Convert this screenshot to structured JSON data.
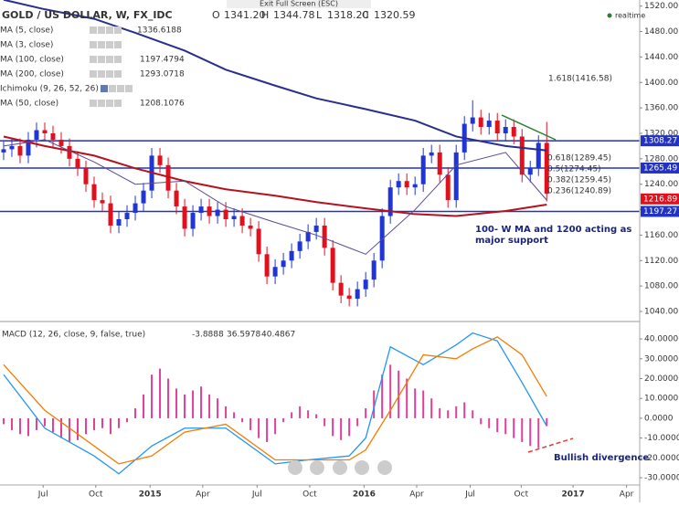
{
  "ui": {
    "fullscreen": "Exit Full Screen (ESC)",
    "realtime": "realtime"
  },
  "header": {
    "symbol": "GOLD / US DOLLAR, W, FX_IDC",
    "ohlc": [
      {
        "label": "O",
        "value": "1341.20"
      },
      {
        "label": "H",
        "value": "1344.78"
      },
      {
        "label": "L",
        "value": "1318.20"
      },
      {
        "label": "C",
        "value": "1320.59"
      }
    ]
  },
  "chart_data": [
    {
      "type": "candlestick",
      "up_color": "#1f35d6",
      "down_color": "#e0101c",
      "categories": [
        null,
        null,
        null,
        null,
        null,
        null,
        null,
        null,
        null,
        null,
        null,
        null,
        null,
        null,
        null,
        null,
        null,
        null,
        null,
        null,
        null,
        null,
        null,
        null,
        null,
        null,
        null,
        null,
        null,
        null,
        null,
        null,
        null,
        null,
        null,
        null,
        null,
        null,
        null,
        null,
        null,
        null,
        null,
        null,
        null,
        null,
        null,
        null,
        null,
        null,
        null,
        null,
        null,
        null,
        null,
        null,
        null,
        null,
        null,
        null,
        null,
        null,
        null,
        null,
        null,
        null,
        null
      ],
      "open": [
        1290,
        1295,
        1300,
        1285,
        1310,
        1325,
        1320,
        1310,
        1300,
        1280,
        1265,
        1240,
        1215,
        1210,
        1175,
        1185,
        1195,
        1210,
        1230,
        1285,
        1270,
        1230,
        1205,
        1170,
        1195,
        1205,
        1190,
        1200,
        1185,
        1190,
        1175,
        1170,
        1130,
        1095,
        1110,
        1120,
        1135,
        1150,
        1165,
        1175,
        1140,
        1085,
        1065,
        1060,
        1075,
        1090,
        1120,
        1190,
        1235,
        1245,
        1235,
        1240,
        1285,
        1290,
        1255,
        1215,
        1290,
        1335,
        1345,
        1330,
        1340,
        1320,
        1330,
        1315,
        1255,
        1265,
        1305
      ],
      "high": [
        1307,
        1312,
        1312,
        1322,
        1337,
        1337,
        1332,
        1322,
        1312,
        1292,
        1277,
        1252,
        1227,
        1222,
        1197,
        1207,
        1222,
        1242,
        1297,
        1297,
        1282,
        1242,
        1217,
        1207,
        1217,
        1217,
        1212,
        1212,
        1202,
        1202,
        1187,
        1182,
        1142,
        1122,
        1132,
        1147,
        1162,
        1177,
        1187,
        1187,
        1152,
        1097,
        1077,
        1087,
        1102,
        1132,
        1202,
        1247,
        1257,
        1257,
        1252,
        1297,
        1302,
        1302,
        1267,
        1302,
        1347,
        1372,
        1357,
        1352,
        1352,
        1342,
        1342,
        1327,
        1277,
        1317,
        1338
      ],
      "low": [
        1278,
        1283,
        1273,
        1273,
        1298,
        1308,
        1298,
        1288,
        1268,
        1253,
        1228,
        1203,
        1198,
        1163,
        1163,
        1173,
        1183,
        1198,
        1218,
        1258,
        1218,
        1193,
        1158,
        1158,
        1183,
        1178,
        1178,
        1173,
        1173,
        1163,
        1158,
        1118,
        1083,
        1083,
        1098,
        1108,
        1123,
        1138,
        1153,
        1128,
        1073,
        1053,
        1048,
        1048,
        1063,
        1078,
        1108,
        1178,
        1223,
        1223,
        1223,
        1228,
        1273,
        1243,
        1203,
        1203,
        1278,
        1323,
        1318,
        1318,
        1308,
        1308,
        1303,
        1243,
        1243,
        1253,
        1213
      ],
      "close": [
        1295,
        1300,
        1285,
        1310,
        1325,
        1320,
        1310,
        1300,
        1280,
        1265,
        1240,
        1215,
        1210,
        1175,
        1185,
        1195,
        1210,
        1230,
        1285,
        1270,
        1230,
        1205,
        1170,
        1195,
        1205,
        1190,
        1200,
        1185,
        1190,
        1175,
        1170,
        1130,
        1095,
        1110,
        1120,
        1135,
        1150,
        1165,
        1175,
        1140,
        1085,
        1065,
        1060,
        1075,
        1090,
        1120,
        1190,
        1235,
        1245,
        1235,
        1240,
        1285,
        1290,
        1255,
        1215,
        1290,
        1335,
        1345,
        1330,
        1340,
        1320,
        1330,
        1315,
        1255,
        1265,
        1305,
        1225
      ],
      "series": [
        {
          "name": "MA (5, close)",
          "value": "1336.6188",
          "color": "#2e7d32"
        },
        {
          "name": "MA (3, close)",
          "value": "",
          "color": "#bbbbbb"
        },
        {
          "name": "MA (100, close)",
          "value": "1197.4794",
          "color": "#b5121b",
          "x": [
            0,
            5,
            11,
            16,
            22,
            27,
            33,
            38,
            44,
            50,
            55,
            61,
            66
          ],
          "values": [
            1315,
            1300,
            1285,
            1265,
            1245,
            1232,
            1222,
            1212,
            1202,
            1193,
            1190,
            1198,
            1208
          ]
        },
        {
          "name": "MA (200, close)",
          "value": "1293.0718",
          "color": "#2a2e8c",
          "x": [
            0,
            5,
            11,
            16,
            22,
            27,
            33,
            38,
            44,
            50,
            55,
            61,
            66
          ],
          "values": [
            1530,
            1515,
            1500,
            1478,
            1450,
            1420,
            1395,
            1375,
            1358,
            1340,
            1315,
            1300,
            1293
          ]
        },
        {
          "name": "Ichimoku (9, 26, 52, 26)",
          "color": "#999999"
        },
        {
          "name": "MA (50, close)",
          "value": "1208.1076",
          "color": "#5b4a8f",
          "x": [
            0,
            5,
            11,
            16,
            22,
            27,
            33,
            38,
            44,
            50,
            55,
            61,
            66
          ],
          "values": [
            1300,
            1310,
            1275,
            1240,
            1245,
            1205,
            1180,
            1160,
            1130,
            1200,
            1270,
            1290,
            1215
          ]
        }
      ],
      "levels": [
        {
          "value": 1308.27,
          "color": "#2233c4",
          "line": true
        },
        {
          "value": 1265.49,
          "color": "#2233c4",
          "line": true
        },
        {
          "value": 1216.89,
          "color": "#e0101c",
          "line": false
        },
        {
          "value": 1197.27,
          "color": "#2233c4",
          "line": true
        }
      ],
      "fib": [
        "0.618(1289.45)",
        "0.5(1274.45)",
        "0.382(1259.45)",
        "0.236(1240.89)"
      ],
      "fib_ext": "1.618(1416.58)",
      "annotation": [
        "100- W MA and 1200 acting as",
        "major support"
      ],
      "xlim": [
        -0.44,
        77.3
      ],
      "ylim": [
        1024.2,
        1529.6
      ],
      "yticks": [
        {
          "value": 1520,
          "label": "1520.00"
        },
        {
          "value": 1480,
          "label": "1480.00"
        },
        {
          "value": 1440,
          "label": "1440.00"
        },
        {
          "value": 1400,
          "label": "1400.00"
        },
        {
          "value": 1360,
          "label": "1360.00"
        },
        {
          "value": 1320,
          "label": "1320.00"
        },
        {
          "value": 1280,
          "label": "1280.00"
        },
        {
          "value": 1240,
          "label": "1240.00"
        },
        {
          "value": 1200,
          "label": "1200.00"
        },
        {
          "value": 1160,
          "label": "1160.00"
        },
        {
          "value": 1120,
          "label": "1120.00"
        },
        {
          "value": 1080,
          "label": "1080.00"
        },
        {
          "value": 1040,
          "label": "1040.00"
        }
      ]
    },
    {
      "type": "macd",
      "title": "MACD (12, 26, close, 9, false, true)",
      "readings": [
        {
          "value": "-3.8888",
          "color": "#e0409a"
        },
        {
          "value": "36.5978",
          "color": "#2196f3"
        },
        {
          "value": "40.4867",
          "color": "#f57c00"
        }
      ],
      "hist_color": "#e0409a",
      "histogram": [
        -3,
        -6,
        -8,
        -9,
        -6,
        -4,
        -7,
        -10,
        -12,
        -11,
        -8,
        -6,
        -5,
        -8,
        -5,
        -2,
        5,
        12,
        22,
        25,
        20,
        15,
        12,
        14,
        16,
        12,
        10,
        6,
        3,
        -2,
        -6,
        -10,
        -12,
        -8,
        -2,
        3,
        6,
        4,
        2,
        -4,
        -9,
        -11,
        -9,
        -4,
        5,
        14,
        22,
        27,
        24,
        20,
        15,
        14,
        10,
        5,
        4,
        6,
        8,
        4,
        -3,
        -5,
        -7,
        -8,
        -10,
        -12,
        -14,
        -15,
        -4
      ],
      "series": [
        {
          "color": "#2196f3",
          "x": [
            0,
            5,
            11,
            14,
            18,
            22,
            27,
            33,
            37,
            42,
            44,
            47,
            51,
            55,
            57,
            60,
            63,
            66
          ],
          "values": [
            22,
            -5,
            -19,
            -28,
            -14,
            -5,
            -5,
            -23,
            -21,
            -19,
            -10,
            36,
            27,
            37,
            43,
            39,
            18,
            -3.9
          ]
        },
        {
          "color": "#f57c00",
          "x": [
            0,
            5,
            11,
            14,
            18,
            22,
            27,
            33,
            37,
            42,
            44,
            47,
            51,
            55,
            57,
            60,
            63,
            66
          ],
          "values": [
            27,
            4,
            -14,
            -23,
            -19,
            -7,
            -3,
            -21,
            -21,
            -21,
            -16,
            4,
            32,
            30,
            35,
            41,
            32,
            11
          ]
        }
      ],
      "annotation": "Bullish divergence",
      "xlim": [
        -0.44,
        77.3
      ],
      "ylim": [
        -33.2,
        47.4
      ],
      "yticks": [
        {
          "value": 40,
          "label": "40.0000"
        },
        {
          "value": 30,
          "label": "30.0000"
        },
        {
          "value": 20,
          "label": "20.0000"
        },
        {
          "value": 10,
          "label": "10.0000"
        },
        {
          "value": 0,
          "label": "0.0000"
        },
        {
          "value": -10,
          "label": "-10.0000"
        },
        {
          "value": -20,
          "label": "-20.0000"
        },
        {
          "value": -30,
          "label": "-30.0000"
        }
      ],
      "xticks": [
        {
          "value": 4.8,
          "label": "Jul"
        },
        {
          "value": 11.2,
          "label": "Oct"
        },
        {
          "value": 17.8,
          "label": "2015"
        },
        {
          "value": 24.2,
          "label": "Apr"
        },
        {
          "value": 30.8,
          "label": "Jul"
        },
        {
          "value": 37.2,
          "label": "Oct"
        },
        {
          "value": 43.8,
          "label": "2016"
        },
        {
          "value": 50.2,
          "label": "Apr"
        },
        {
          "value": 56.7,
          "label": "Jul"
        },
        {
          "value": 62.9,
          "label": "Oct"
        },
        {
          "value": 69.2,
          "label": "2017"
        },
        {
          "value": 75.7,
          "label": "Apr"
        }
      ]
    }
  ]
}
